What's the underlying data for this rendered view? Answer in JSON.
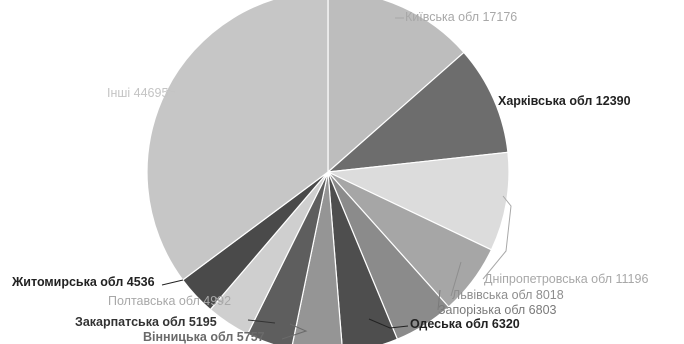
{
  "chart_data": {
    "type": "pie",
    "slices": [
      {
        "label": "Київська обл 17176",
        "name": "Київська обл",
        "value": 17176,
        "color": "#bdbdbd",
        "label_color": "#a8a8a8",
        "bold": false
      },
      {
        "label": "Харківська обл 12390",
        "name": "Харківська обл",
        "value": 12390,
        "color": "#6d6d6d",
        "label_color": "#222222",
        "bold": true
      },
      {
        "label": "Дніпропетровська обл 11196",
        "name": "Дніпропетровська обл",
        "value": 11196,
        "color": "#dcdcdc",
        "label_color": "#a8a8a8",
        "bold": false
      },
      {
        "label": "Львівська обл 8018",
        "name": "Львівська обл",
        "value": 8018,
        "color": "#a6a6a6",
        "label_color": "#8e8e8e",
        "bold": false
      },
      {
        "label": "Запорізька обл 6803",
        "name": "Запорізька обл",
        "value": 6803,
        "color": "#8b8b8b",
        "label_color": "#7a7a7a",
        "bold": false
      },
      {
        "label": "Одеська обл 6320",
        "name": "Одеська обл",
        "value": 6320,
        "color": "#4e4e4e",
        "label_color": "#222222",
        "bold": true
      },
      {
        "label": "Вінницька обл 5757",
        "name": "Вінницька обл",
        "value": 5757,
        "color": "#959595",
        "label_color": "#6a6a6a",
        "bold": true
      },
      {
        "label": "Закарпатська обл 5195",
        "name": "Закарпатська обл",
        "value": 5195,
        "color": "#5e5e5e",
        "label_color": "#333333",
        "bold": true
      },
      {
        "label": "Полтавська обл 4992",
        "name": "Полтавська обл",
        "value": 4992,
        "color": "#cfcfcf",
        "label_color": "#a8a8a8",
        "bold": false
      },
      {
        "label": "Житомирська обл 4536",
        "name": "Житомирська обл",
        "value": 4536,
        "color": "#4a4a4a",
        "label_color": "#222222",
        "bold": true
      },
      {
        "label": "Інші 44695",
        "name": "Інші",
        "value": 44695,
        "color": "#c6c6c6",
        "label_color": "#c4c4c4",
        "bold": false
      }
    ]
  }
}
